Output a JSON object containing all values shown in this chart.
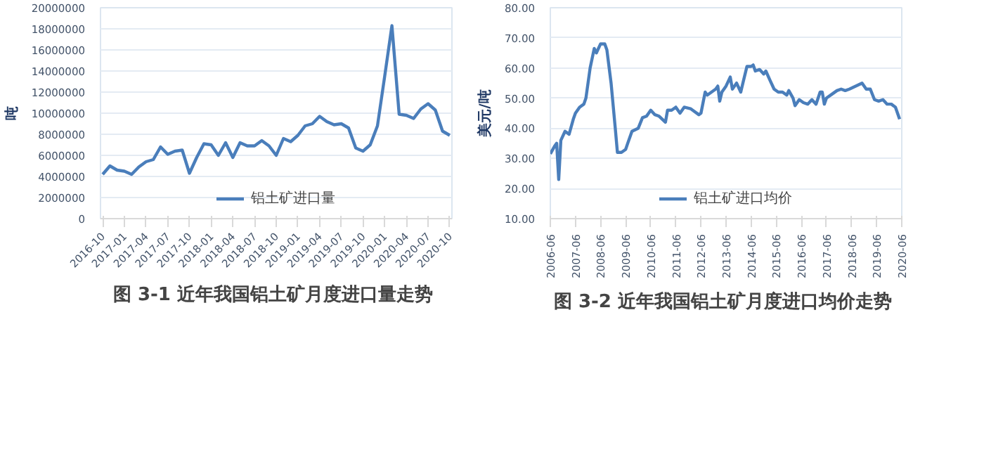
{
  "chart_data": [
    {
      "type": "line",
      "title": "图 3-1  近年我国铝土矿月度进口量走势",
      "ylabel": "吨",
      "categories": [
        "2016-10",
        null,
        null,
        "2017-01",
        null,
        null,
        "2017-04",
        null,
        null,
        "2017-07",
        null,
        null,
        "2017-10",
        null,
        null,
        "2018-01",
        null,
        null,
        "2018-04",
        null,
        null,
        "2018-07",
        null,
        null,
        "2018-10",
        null,
        null,
        "2019-01",
        null,
        null,
        "2019-04",
        null,
        null,
        "2019-07",
        null,
        null,
        "2019-10",
        null,
        null,
        "2020-01",
        null,
        null,
        "2020-04",
        null,
        null,
        "2020-07",
        null,
        null,
        "2020-10"
      ],
      "series": [
        {
          "name": "铝土矿进口量",
          "color": "#4a7ebb",
          "values": [
            4200000,
            5000000,
            4600000,
            4500000,
            4200000,
            4900000,
            5400000,
            5600000,
            6800000,
            6100000,
            6400000,
            6500000,
            4300000,
            5800000,
            7100000,
            7000000,
            6000000,
            7200000,
            5800000,
            7200000,
            6900000,
            6900000,
            7400000,
            6900000,
            6000000,
            7600000,
            7300000,
            7900000,
            8800000,
            9000000,
            9700000,
            9200000,
            8900000,
            9000000,
            8600000,
            6700000,
            6400000,
            7000000,
            8800000,
            13500000,
            18300000,
            9900000,
            9800000,
            9500000,
            10400000,
            10900000,
            10300000,
            8300000,
            7900000
          ]
        }
      ],
      "ylim": [
        0,
        20000000
      ],
      "yticks": [
        0,
        2000000,
        4000000,
        6000000,
        8000000,
        10000000,
        12000000,
        14000000,
        16000000,
        18000000,
        20000000
      ],
      "grid": "y",
      "legend": "bottom",
      "marker": "none",
      "line_style": "solid"
    },
    {
      "type": "line",
      "title": "图 3-2  近年我国铝土矿月度进口均价走势",
      "ylabel": "美元/吨",
      "x": [
        "2006-06",
        "2006-08",
        "2006-09",
        "2006-10",
        "2006-11",
        "2007-01",
        "2007-03",
        "2007-05",
        "2007-06",
        "2007-08",
        "2007-10",
        "2007-11",
        "2008-01",
        "2008-03",
        "2008-04",
        "2008-06",
        "2008-08",
        "2008-09",
        "2008-11",
        "2009-01",
        "2009-02",
        "2009-04",
        "2009-06",
        "2009-07",
        "2009-09",
        "2009-12",
        "2010-02",
        "2010-04",
        "2010-06",
        "2010-08",
        "2010-10",
        "2011-01",
        "2011-02",
        "2011-04",
        "2011-06",
        "2011-08",
        "2011-10",
        "2012-01",
        "2012-02",
        "2012-05",
        "2012-06",
        "2012-08",
        "2012-09",
        "2012-11",
        "2013-01",
        "2013-02",
        "2013-03",
        "2013-04",
        "2013-06",
        "2013-08",
        "2013-09",
        "2013-11",
        "2014-01",
        "2014-02",
        "2014-04",
        "2014-06",
        "2014-07",
        "2014-08",
        "2014-10",
        "2014-12",
        "2015-01",
        "2015-03",
        "2015-05",
        "2015-07",
        "2015-09",
        "2015-11",
        "2015-12",
        "2016-02",
        "2016-03",
        "2016-05",
        "2016-07",
        "2016-09",
        "2016-11",
        "2017-01",
        "2017-03",
        "2017-04",
        "2017-05",
        "2017-06",
        "2017-09",
        "2017-11",
        "2018-01",
        "2018-03",
        "2018-05",
        "2018-08",
        "2018-11",
        "2019-01",
        "2019-03",
        "2019-05",
        "2019-07",
        "2019-09",
        "2019-11",
        "2020-01",
        "2020-03",
        "2020-05"
      ],
      "series": [
        {
          "name": "铝土矿进口均价",
          "color": "#4a7ebb",
          "values": [
            31.5,
            34,
            35,
            23,
            36,
            39,
            38,
            43,
            45,
            47,
            48,
            50,
            60,
            66.5,
            65,
            68,
            68,
            66,
            55,
            40,
            32,
            32,
            33,
            35,
            39,
            40,
            43.5,
            44,
            46,
            44.5,
            44,
            42,
            46,
            46,
            47,
            45,
            47,
            46.5,
            46,
            44.5,
            45,
            52,
            51,
            52,
            53,
            54,
            49,
            52,
            54,
            57,
            53,
            55,
            52,
            55,
            60.5,
            60.5,
            61,
            59,
            59.5,
            58,
            59,
            56,
            53,
            52,
            52,
            51,
            52.5,
            50,
            47.5,
            49.5,
            48.5,
            48,
            49.5,
            48,
            52,
            52,
            48,
            50,
            51.5,
            52.5,
            53,
            52.5,
            53,
            54,
            55,
            53,
            53,
            49.5,
            49,
            49.5,
            48,
            48,
            47,
            43
          ]
        }
      ],
      "xlim": [
        "2006-06",
        "2020-06"
      ],
      "xticks": [
        "2006-06",
        "2007-06",
        "2008-06",
        "2009-06",
        "2010-06",
        "2011-06",
        "2012-06",
        "2013-06",
        "2014-06",
        "2015-06",
        "2016-06",
        "2017-06",
        "2018-06",
        "2019-06",
        "2020-06"
      ],
      "ylim": [
        10,
        80
      ],
      "yticks": [
        {
          "value": 10,
          "label": "10.00"
        },
        {
          "value": 20,
          "label": "20.00"
        },
        {
          "value": 30,
          "label": "30.00"
        },
        {
          "value": 40,
          "label": "40.00"
        },
        {
          "value": 50,
          "label": "50.00"
        },
        {
          "value": 60,
          "label": "60.00"
        },
        {
          "value": 70,
          "label": "70.00"
        },
        {
          "value": 80,
          "label": "80.00"
        }
      ],
      "grid": "y",
      "legend": "bottom",
      "marker": "none",
      "line_style": "solid"
    }
  ]
}
